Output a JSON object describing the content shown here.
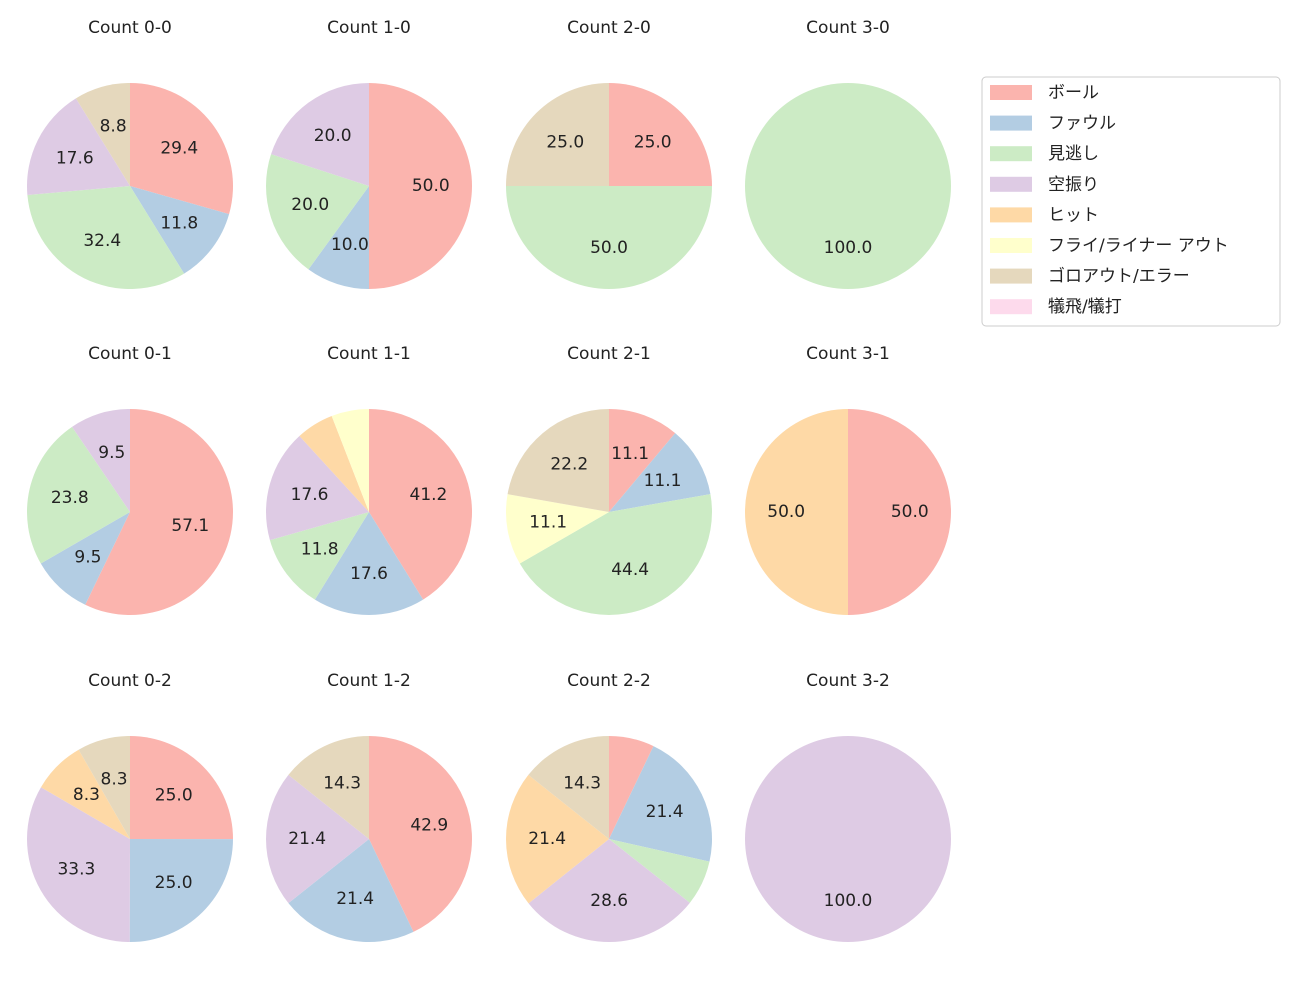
{
  "legend": {
    "categories": [
      "ボール",
      "ファウル",
      "見逃し",
      "空振り",
      "ヒット",
      "フライ/ライナー アウト",
      "ゴロアウト/エラー",
      "犠飛/犠打"
    ],
    "colors": [
      "#fbb4ae",
      "#b3cde3",
      "#ccebc5",
      "#decbe4",
      "#fed9a6",
      "#ffffcc",
      "#e5d8bd",
      "#fddaec"
    ],
    "position": "upper right"
  },
  "chart_data": [
    {
      "type": "pie",
      "title": "Count 0-0",
      "values": [
        29.4,
        11.8,
        32.4,
        17.6,
        null,
        null,
        8.8,
        null
      ],
      "value_labels": [
        "29.4",
        "11.8",
        "32.4",
        "17.6",
        null,
        null,
        "8.8",
        null
      ]
    },
    {
      "type": "pie",
      "title": "Count 1-0",
      "values": [
        50,
        10,
        20,
        20,
        null,
        null,
        null,
        null
      ],
      "value_labels": [
        "50.0",
        "10.0",
        "20.0",
        "20.0",
        null,
        null,
        null,
        null
      ]
    },
    {
      "type": "pie",
      "title": "Count 2-0",
      "values": [
        25,
        null,
        50,
        null,
        null,
        null,
        25,
        null
      ],
      "value_labels": [
        "25.0",
        null,
        "50.0",
        null,
        null,
        null,
        "25.0",
        null
      ]
    },
    {
      "type": "pie",
      "title": "Count 3-0",
      "values": [
        null,
        null,
        100,
        null,
        null,
        null,
        null,
        null
      ],
      "value_labels": [
        null,
        null,
        "100.0",
        null,
        null,
        null,
        null,
        null
      ]
    },
    {
      "type": "pie",
      "title": "Count 0-1",
      "values": [
        57.1,
        9.5,
        23.8,
        9.5,
        null,
        null,
        null,
        null
      ],
      "value_labels": [
        "57.1",
        "9.5",
        "23.8",
        "9.5",
        null,
        null,
        null,
        null
      ]
    },
    {
      "type": "pie",
      "title": "Count 1-1",
      "values": [
        41.2,
        17.6,
        11.8,
        17.6,
        5.9,
        5.9,
        null,
        null
      ],
      "value_labels": [
        "41.2",
        "17.6",
        "11.8",
        "17.6",
        null,
        null,
        null,
        null
      ]
    },
    {
      "type": "pie",
      "title": "Count 2-1",
      "values": [
        11.1,
        11.1,
        44.4,
        null,
        null,
        11.1,
        22.2,
        null
      ],
      "value_labels": [
        "11.1",
        "11.1",
        "44.4",
        null,
        null,
        "11.1",
        "22.2",
        null
      ]
    },
    {
      "type": "pie",
      "title": "Count 3-1",
      "values": [
        50,
        null,
        null,
        null,
        50,
        null,
        null,
        null
      ],
      "value_labels": [
        "50.0",
        null,
        null,
        null,
        "50.0",
        null,
        null,
        null
      ]
    },
    {
      "type": "pie",
      "title": "Count 0-2",
      "values": [
        25,
        25,
        null,
        33.3,
        8.3,
        null,
        8.3,
        null
      ],
      "value_labels": [
        "25.0",
        "25.0",
        null,
        "33.3",
        "8.3",
        null,
        "8.3",
        null
      ]
    },
    {
      "type": "pie",
      "title": "Count 1-2",
      "values": [
        42.9,
        21.4,
        null,
        21.4,
        null,
        null,
        14.3,
        null
      ],
      "value_labels": [
        "42.9",
        "21.4",
        null,
        "21.4",
        null,
        null,
        "14.3",
        null
      ]
    },
    {
      "type": "pie",
      "title": "Count 2-2",
      "values": [
        7.1,
        21.4,
        7.1,
        28.6,
        21.4,
        null,
        14.3,
        null
      ],
      "value_labels": [
        null,
        "21.4",
        null,
        "28.6",
        "21.4",
        null,
        "14.3",
        null
      ]
    },
    {
      "type": "pie",
      "title": "Count 3-2",
      "values": [
        null,
        null,
        null,
        100,
        null,
        null,
        null,
        null
      ],
      "value_labels": [
        null,
        null,
        null,
        "100.0",
        null,
        null,
        null,
        null
      ]
    }
  ]
}
